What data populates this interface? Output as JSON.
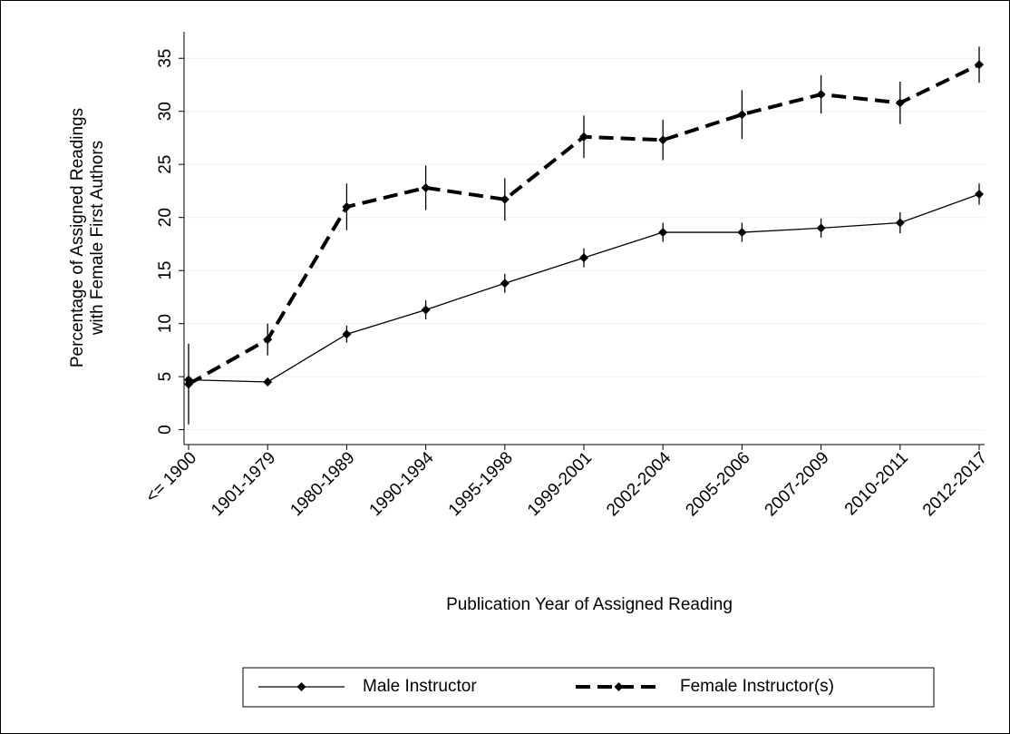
{
  "chart_data": {
    "type": "line",
    "x_label": "Publication Year of Assigned Reading",
    "y_label": [
      "Percentage of Assigned Readings",
      "with Female First Authors"
    ],
    "categories": [
      "<= 1900",
      "1901-1979",
      "1980-1989",
      "1990-1994",
      "1995-1998",
      "1999-2001",
      "2002-2004",
      "2005-2006",
      "2007-2009",
      "2010-2011",
      "2012-2017"
    ],
    "series": [
      {
        "name": "Male Instructor",
        "color": "#000000",
        "dash": "solid",
        "values": [
          4.7,
          4.5,
          9.0,
          11.3,
          13.8,
          16.2,
          18.6,
          18.6,
          19.0,
          19.5,
          22.2
        ],
        "errors": [
          0.3,
          0.4,
          0.8,
          0.9,
          0.9,
          0.9,
          0.9,
          0.9,
          0.9,
          1.0,
          1.0
        ]
      },
      {
        "name": "Female Instructor(s)",
        "color": "#000000",
        "dash": "dashed",
        "values": [
          4.3,
          8.5,
          21.0,
          22.8,
          21.7,
          27.6,
          27.3,
          29.7,
          31.6,
          30.8,
          34.4
        ],
        "errors": [
          3.8,
          1.5,
          2.2,
          2.1,
          2.0,
          2.0,
          1.9,
          2.3,
          1.8,
          2.0,
          1.7
        ]
      }
    ],
    "ylim": [
      -1.4,
      37.5
    ],
    "yticks": [
      0,
      5,
      10,
      15,
      20,
      25,
      30,
      35
    ],
    "grid": true,
    "legend": "bottom"
  }
}
